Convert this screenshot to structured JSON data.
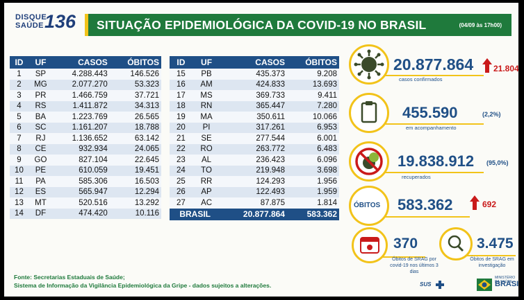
{
  "header": {
    "logo_line1": "DISQUE",
    "logo_line2": "SAÚDE",
    "logo_number": "136",
    "title": "SITUAÇÃO EPIDEMIOLÓGICA DA COVID-19 NO BRASIL",
    "date": "(04/09 às 17h00)"
  },
  "table": {
    "columns": [
      "ID",
      "UF",
      "CASOS",
      "ÓBITOS"
    ],
    "left_rows": [
      [
        "1",
        "SP",
        "4.288.443",
        "146.526"
      ],
      [
        "2",
        "MG",
        "2.077.270",
        "53.323"
      ],
      [
        "3",
        "PR",
        "1.466.759",
        "37.721"
      ],
      [
        "4",
        "RS",
        "1.411.872",
        "34.313"
      ],
      [
        "5",
        "BA",
        "1.223.769",
        "26.565"
      ],
      [
        "6",
        "SC",
        "1.161.207",
        "18.788"
      ],
      [
        "7",
        "RJ",
        "1.136.652",
        "63.142"
      ],
      [
        "8",
        "CE",
        "932.934",
        "24.065"
      ],
      [
        "9",
        "GO",
        "827.104",
        "22.645"
      ],
      [
        "10",
        "PE",
        "610.059",
        "19.451"
      ],
      [
        "11",
        "PA",
        "585.306",
        "16.503"
      ],
      [
        "12",
        "ES",
        "565.947",
        "12.294"
      ],
      [
        "13",
        "MT",
        "520.516",
        "13.292"
      ],
      [
        "14",
        "DF",
        "474.420",
        "10.116"
      ]
    ],
    "right_rows": [
      [
        "15",
        "PB",
        "435.373",
        "9.208"
      ],
      [
        "16",
        "AM",
        "424.833",
        "13.693"
      ],
      [
        "17",
        "MS",
        "369.733",
        "9.411"
      ],
      [
        "18",
        "RN",
        "365.447",
        "7.280"
      ],
      [
        "19",
        "MA",
        "350.611",
        "10.066"
      ],
      [
        "20",
        "PI",
        "317.261",
        "6.953"
      ],
      [
        "21",
        "SE",
        "277.544",
        "6.001"
      ],
      [
        "22",
        "RO",
        "263.772",
        "6.483"
      ],
      [
        "23",
        "AL",
        "236.423",
        "6.096"
      ],
      [
        "24",
        "TO",
        "219.948",
        "3.698"
      ],
      [
        "25",
        "RR",
        "124.293",
        "1.956"
      ],
      [
        "26",
        "AP",
        "122.493",
        "1.959"
      ],
      [
        "27",
        "AC",
        "87.875",
        "1.814"
      ]
    ],
    "total": {
      "label": "BRASIL",
      "cases": "20.877.864",
      "deaths": "583.362"
    }
  },
  "stats": {
    "confirmed": {
      "value": "20.877.864",
      "new": "21.804",
      "label": "casos confirmados",
      "icon": "virus-icon"
    },
    "monitoring": {
      "value": "455.590",
      "pct": "(2,2%)",
      "label": "em acompanhamento",
      "icon": "clipboard-icon"
    },
    "recovered": {
      "value": "19.838.912",
      "pct": "(95,0%)",
      "label": "recuperados",
      "icon": "virus-crossed-icon"
    },
    "deaths": {
      "label": "ÓBITOS",
      "value": "583.362",
      "new": "692"
    },
    "srag_deaths": {
      "value": "370",
      "label": "Óbitos de SRAG por covid-19 nos últimos 3 dias",
      "icon": "calendar-icon"
    },
    "srag_investigation": {
      "value": "3.475",
      "label": "Óbitos de SRAG em investigação",
      "icon": "magnifier-icon"
    }
  },
  "footer": {
    "line1": "Fonte: Secretarias Estaduais de Saúde;",
    "line2": "Sistema de Informação da Vigilância Epidemiológica da Gripe - dados sujeitos a alterações.",
    "sus_logo": "SUS",
    "gov_small": "MINISTÉRIO DA SAÚDE",
    "gov_logo": "BRASIL"
  },
  "colors": {
    "green": "#1f7a3c",
    "blue": "#1f4f86",
    "yellow": "#f2c31a",
    "red": "#c91a1a"
  }
}
